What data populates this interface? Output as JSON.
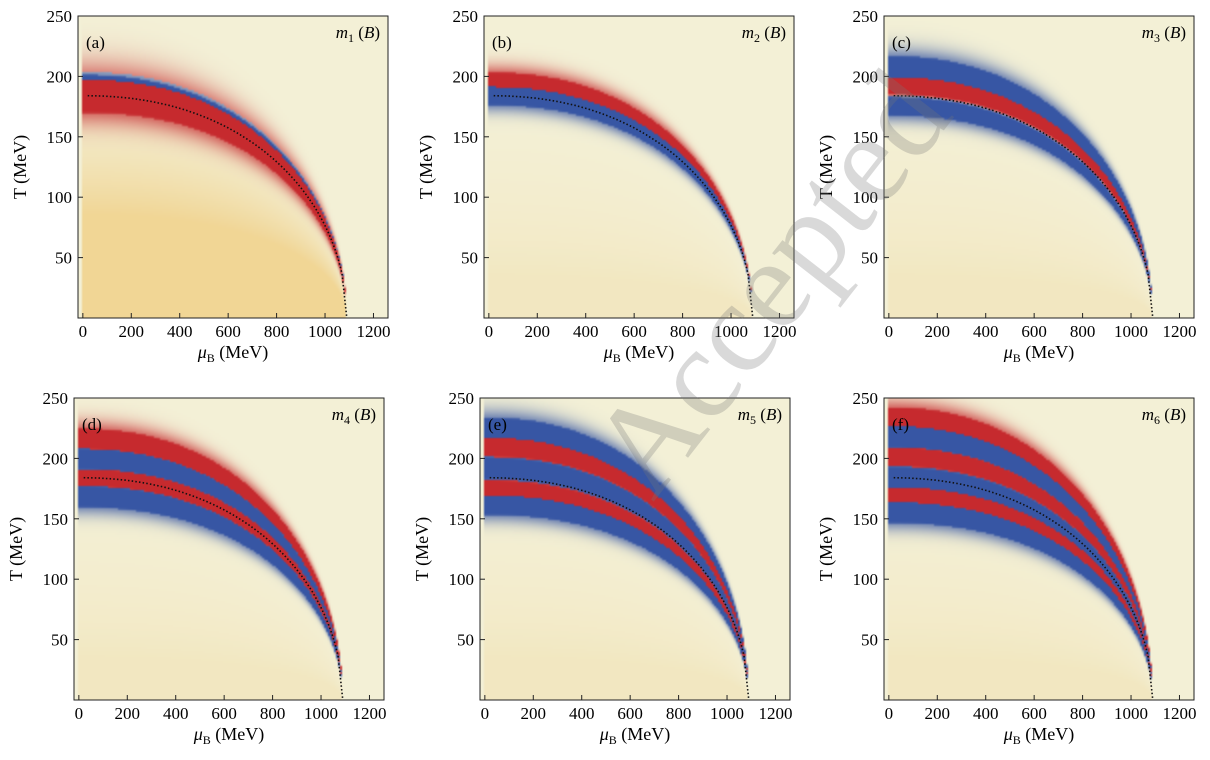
{
  "watermark": "Accepted",
  "chart_data": [
    {
      "type": "heatmap",
      "panel": "(a)",
      "label": {
        "symbol": "m",
        "sub": "1",
        "arg": "B"
      },
      "xlabel": {
        "symbol": "μ",
        "sub": "B",
        "unit": "(MeV)"
      },
      "ylabel": "T (MeV)",
      "xlim": [
        -20,
        1260
      ],
      "ylim": [
        0,
        250
      ],
      "xticks": [
        0,
        200,
        400,
        600,
        800,
        1000,
        1200
      ],
      "yticks": [
        50,
        100,
        150,
        200,
        250
      ],
      "phase_boundary": {
        "T0": 184,
        "muc": 1090,
        "exponent": 2.2,
        "style": "dotted"
      },
      "bands": [
        {
          "polarity": "positive",
          "offset": 0.0,
          "width": 0.09,
          "inside": true,
          "fill": "broad"
        },
        {
          "polarity": "negative",
          "offset": 0.045,
          "width": 0.05
        }
      ]
    },
    {
      "type": "heatmap",
      "panel": "(b)",
      "label": {
        "symbol": "m",
        "sub": "2",
        "arg": "B"
      },
      "xlabel": {
        "symbol": "μ",
        "sub": "B",
        "unit": "(MeV)"
      },
      "ylabel": "T (MeV)",
      "xlim": [
        -20,
        1260
      ],
      "ylim": [
        0,
        250
      ],
      "xticks": [
        0,
        200,
        400,
        600,
        800,
        1000,
        1200
      ],
      "yticks": [
        50,
        100,
        150,
        200,
        250
      ],
      "phase_boundary": {
        "T0": 184,
        "muc": 1090,
        "exponent": 2.2,
        "style": "dotted"
      },
      "bands": [
        {
          "polarity": "negative",
          "offset": 0.0,
          "width": 0.05
        },
        {
          "polarity": "positive",
          "offset": 0.06,
          "width": 0.045
        }
      ]
    },
    {
      "type": "heatmap",
      "panel": "(c)",
      "label": {
        "symbol": "m",
        "sub": "3",
        "arg": "B"
      },
      "xlabel": {
        "symbol": "μ",
        "sub": "B",
        "unit": "(MeV)"
      },
      "ylabel": "T (MeV)",
      "xlim": [
        -20,
        1260
      ],
      "ylim": [
        0,
        250
      ],
      "xticks": [
        0,
        200,
        400,
        600,
        800,
        1000,
        1200
      ],
      "yticks": [
        50,
        100,
        150,
        200,
        250
      ],
      "phase_boundary": {
        "T0": 184,
        "muc": 1090,
        "exponent": 2.2,
        "style": "dotted"
      },
      "bands": [
        {
          "polarity": "negative",
          "offset": -0.05,
          "width": 0.05
        },
        {
          "polarity": "positive",
          "offset": 0.045,
          "width": 0.045
        },
        {
          "polarity": "negative",
          "offset": 0.12,
          "width": 0.05
        }
      ]
    },
    {
      "type": "heatmap",
      "panel": "(d)",
      "label": {
        "symbol": "m",
        "sub": "4",
        "arg": "B"
      },
      "xlabel": {
        "symbol": "μ",
        "sub": "B",
        "unit": "(MeV)"
      },
      "ylabel": "T (MeV)",
      "xlim": [
        -20,
        1260
      ],
      "ylim": [
        0,
        250
      ],
      "xticks": [
        0,
        200,
        400,
        600,
        800,
        1000,
        1200
      ],
      "yticks": [
        50,
        100,
        150,
        200,
        250
      ],
      "phase_boundary": {
        "T0": 184,
        "muc": 1090,
        "exponent": 2.2,
        "style": "dotted"
      },
      "bands": [
        {
          "polarity": "negative",
          "offset": -0.09,
          "width": 0.06
        },
        {
          "polarity": "positive",
          "offset": 0.0,
          "width": 0.045
        },
        {
          "polarity": "negative",
          "offset": 0.08,
          "width": 0.05
        },
        {
          "polarity": "positive",
          "offset": 0.16,
          "width": 0.045
        }
      ]
    },
    {
      "type": "heatmap",
      "panel": "(e)",
      "label": {
        "symbol": "m",
        "sub": "5",
        "arg": "B"
      },
      "xlabel": {
        "symbol": "μ",
        "sub": "B",
        "unit": "(MeV)"
      },
      "ylabel": "T (MeV)",
      "xlim": [
        -20,
        1260
      ],
      "ylim": [
        0,
        250
      ],
      "xticks": [
        0,
        200,
        400,
        600,
        800,
        1000,
        1200
      ],
      "yticks": [
        50,
        100,
        150,
        200,
        250
      ],
      "phase_boundary": {
        "T0": 184,
        "muc": 1090,
        "exponent": 2.2,
        "style": "dotted"
      },
      "bands": [
        {
          "polarity": "negative",
          "offset": -0.13,
          "width": 0.06
        },
        {
          "polarity": "positive",
          "offset": -0.05,
          "width": 0.045
        },
        {
          "polarity": "negative",
          "offset": 0.04,
          "width": 0.055
        },
        {
          "polarity": "positive",
          "offset": 0.13,
          "width": 0.045
        },
        {
          "polarity": "negative",
          "offset": 0.2,
          "width": 0.045
        }
      ]
    },
    {
      "type": "heatmap",
      "panel": "(f)",
      "label": {
        "symbol": "m",
        "sub": "6",
        "arg": "B"
      },
      "xlabel": {
        "symbol": "μ",
        "sub": "B",
        "unit": "(MeV)"
      },
      "ylabel": "T (MeV)",
      "xlim": [
        -20,
        1260
      ],
      "ylim": [
        0,
        250
      ],
      "xticks": [
        0,
        200,
        400,
        600,
        800,
        1000,
        1200
      ],
      "yticks": [
        50,
        100,
        150,
        200,
        250
      ],
      "phase_boundary": {
        "T0": 184,
        "muc": 1090,
        "exponent": 2.2,
        "style": "dotted"
      },
      "bands": [
        {
          "polarity": "negative",
          "offset": -0.17,
          "width": 0.065
        },
        {
          "polarity": "positive",
          "offset": -0.08,
          "width": 0.045
        },
        {
          "polarity": "negative",
          "offset": 0.0,
          "width": 0.055
        },
        {
          "polarity": "positive",
          "offset": 0.09,
          "width": 0.045
        },
        {
          "polarity": "negative",
          "offset": 0.17,
          "width": 0.05
        },
        {
          "polarity": "positive",
          "offset": 0.24,
          "width": 0.04
        }
      ]
    }
  ],
  "colors": {
    "background": "#f3f0d6",
    "positive": "#c62a2e",
    "negative": "#3756a4",
    "warm_fill": "#efc060",
    "boundary": "#111111"
  }
}
